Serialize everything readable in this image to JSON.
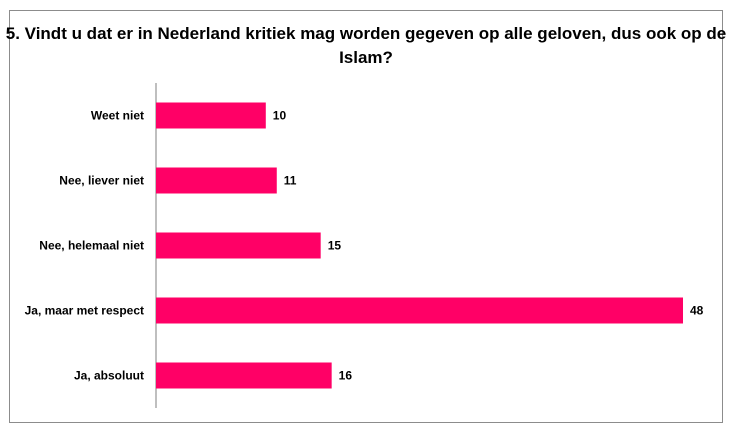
{
  "chart_data": {
    "type": "bar",
    "orientation": "horizontal",
    "title": "5. Vindt u dat er in Nederland kritiek mag worden gegeven op alle geloven, dus ook op de Islam?",
    "categories": [
      "Weet niet",
      "Nee, liever niet",
      "Nee, helemaal niet",
      "Ja, maar met respect",
      "Ja, absoluut"
    ],
    "values": [
      10,
      11,
      15,
      48,
      16
    ],
    "data_labels": [
      "10",
      "11",
      "15",
      "48",
      "16"
    ],
    "xlim": [
      0,
      48
    ],
    "grid": false,
    "legend": "none",
    "bar_color": "#FF0066"
  }
}
